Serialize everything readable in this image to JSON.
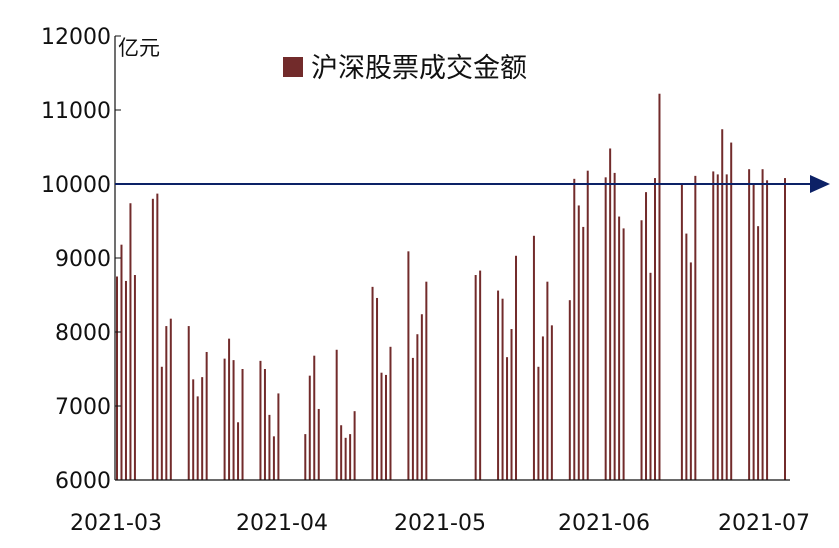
{
  "chart_data": {
    "type": "bar",
    "title": "",
    "xlabel": "",
    "ylabel": "亿元",
    "ylim": [
      6000,
      12000
    ],
    "yticks": [
      "6000",
      "7000",
      "8000",
      "9000",
      "10000",
      "11000",
      "12000"
    ],
    "xticks": [
      "2021-03",
      "2021-04",
      "2021-05",
      "2021-06",
      "2021-07"
    ],
    "grid": false,
    "legend_position": "top",
    "series": [
      {
        "name": "沪深股票成交金额",
        "color": "#722b2b",
        "values": [
          8750,
          9180,
          8690,
          9740,
          8770,
          9800,
          9870,
          7530,
          8080,
          8180,
          8080,
          7360,
          7130,
          7390,
          7730,
          7640,
          7910,
          7620,
          6780,
          7500,
          7610,
          7500,
          6880,
          6590,
          7170,
          6620,
          7410,
          7680,
          6960,
          7760,
          6740,
          6570,
          6620,
          6930,
          8610,
          8460,
          7450,
          7420,
          7800,
          9090,
          7650,
          7970,
          8240,
          8680,
          8770,
          8830,
          8560,
          8450,
          7660,
          8040,
          9030,
          9300,
          7530,
          7940,
          8680,
          8090,
          8430,
          10070,
          9710,
          9420,
          10180,
          10090,
          10480,
          10150,
          9560,
          9400,
          9510,
          9890,
          8800,
          10080,
          11220,
          10000,
          9330,
          8940,
          10110,
          10170,
          10130,
          10740,
          10130,
          10560,
          10200,
          10010,
          9430,
          10200,
          10050,
          10080
        ]
      }
    ],
    "reference_line": {
      "value": 10000,
      "color": "#0c2166"
    }
  }
}
